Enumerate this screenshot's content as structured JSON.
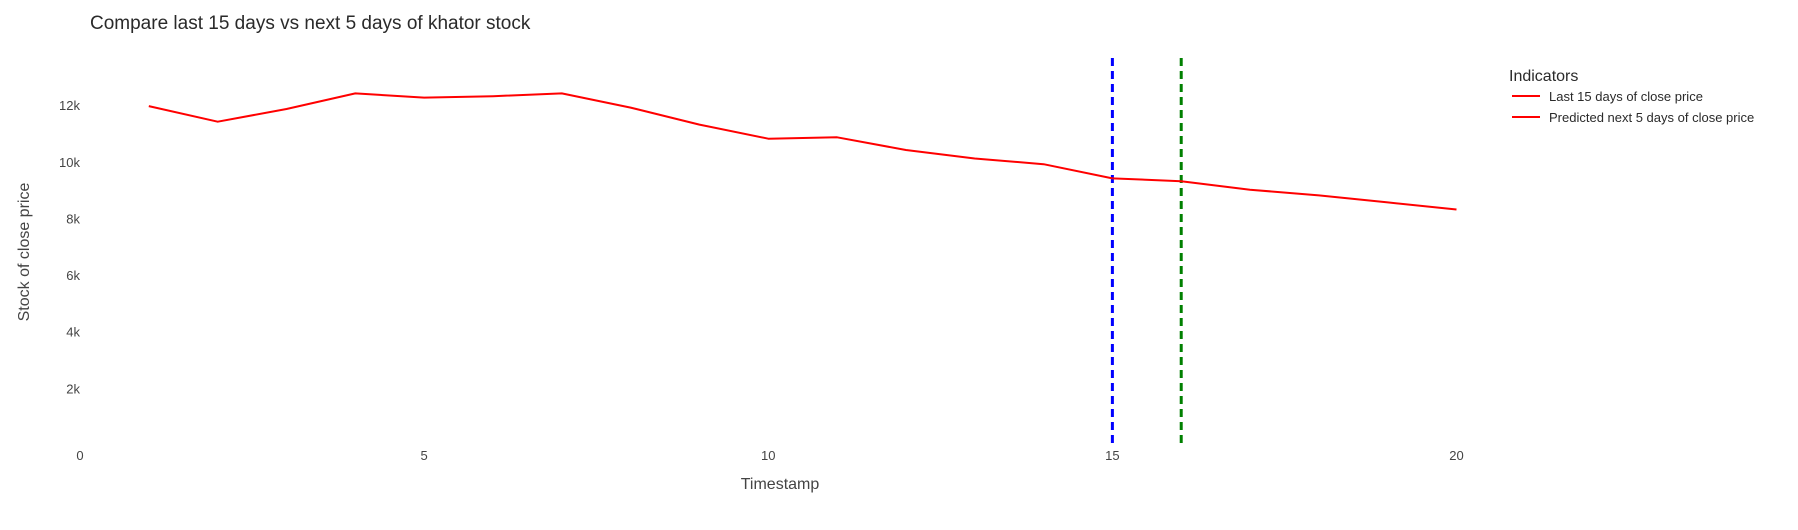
{
  "chart_data": {
    "type": "line",
    "title": "Compare last 15 days vs next 5 days of khator stock",
    "xlabel": "Timestamp",
    "ylabel": "Stock of close price",
    "xlim": [
      0,
      24.7
    ],
    "ylim": [
      0,
      13700
    ],
    "x_ticks": [
      {
        "value": 0,
        "label": "0"
      },
      {
        "value": 5,
        "label": "5"
      },
      {
        "value": 10,
        "label": "10"
      },
      {
        "value": 15,
        "label": "15"
      },
      {
        "value": 20,
        "label": "20"
      }
    ],
    "y_ticks": [
      {
        "value": 2000,
        "label": "2k"
      },
      {
        "value": 4000,
        "label": "4k"
      },
      {
        "value": 6000,
        "label": "6k"
      },
      {
        "value": 8000,
        "label": "8k"
      },
      {
        "value": 10000,
        "label": "10k"
      },
      {
        "value": 12000,
        "label": "12k"
      }
    ],
    "grid": false,
    "legend": {
      "title": "Indicators",
      "placement": "top-right"
    },
    "series": [
      {
        "name": "Last 15 days of close price",
        "color": "#ff0000",
        "x": [
          1,
          2,
          3,
          4,
          5,
          6,
          7,
          8,
          9,
          10,
          11,
          12,
          13,
          14,
          15
        ],
        "y": [
          12000,
          11450,
          11900,
          12450,
          12300,
          12350,
          12450,
          11950,
          11350,
          10850,
          10900,
          10450,
          10150,
          9950,
          9450
        ]
      },
      {
        "name": "Predicted next 5 days of close price",
        "color": "#ff0000",
        "x": [
          16,
          17,
          18,
          19,
          20
        ],
        "y": [
          9350,
          9050,
          8850,
          8600,
          8350
        ]
      }
    ],
    "vertical_lines": [
      {
        "x": 15,
        "color": "#0000ff",
        "style": "dashed"
      },
      {
        "x": 16,
        "color": "#008000",
        "style": "dashed"
      }
    ]
  }
}
